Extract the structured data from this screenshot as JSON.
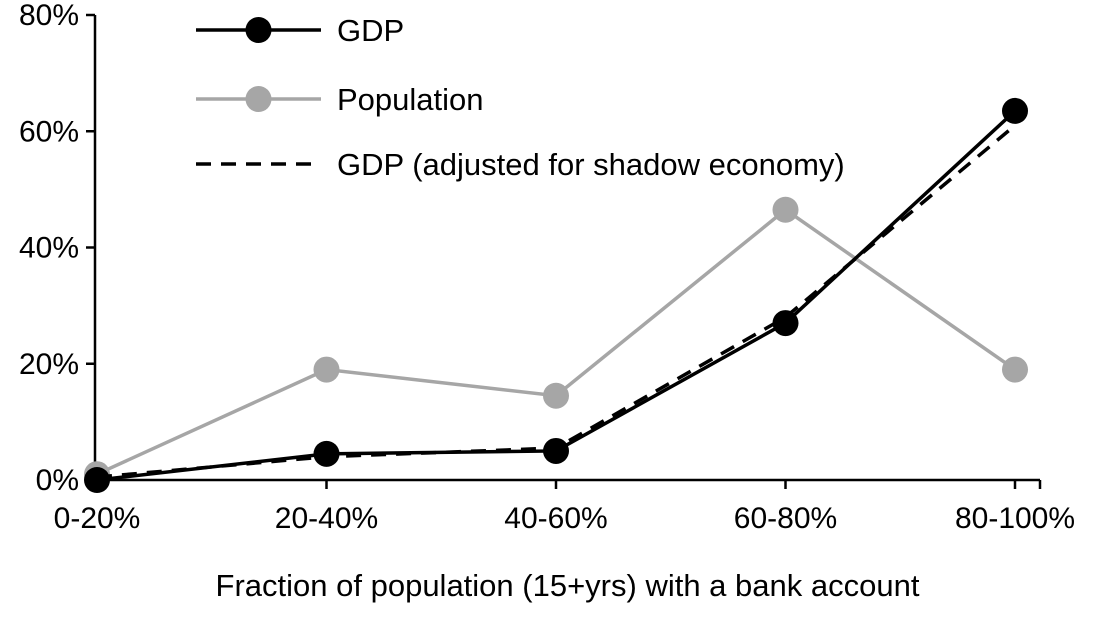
{
  "chart_data": {
    "type": "line",
    "title": "",
    "xlabel": "Fraction of population (15+yrs) with a bank account",
    "ylabel": "",
    "categories": [
      "0-20%",
      "20-40%",
      "40-60%",
      "60-80%",
      "80-100%"
    ],
    "series": [
      {
        "name": "GDP",
        "values": [
          0,
          4.5,
          5,
          27,
          63.5
        ],
        "color": "#000000",
        "dash": "solid",
        "marker": true
      },
      {
        "name": "Population",
        "values": [
          1,
          19,
          14.5,
          46.5,
          19
        ],
        "color": "#a6a6a6",
        "dash": "solid",
        "marker": true
      },
      {
        "name": "GDP (adjusted for shadow economy)",
        "values": [
          0.5,
          4,
          5.5,
          28,
          61
        ],
        "color": "#000000",
        "dash": "dashed",
        "marker": false
      }
    ],
    "ylim": [
      0,
      80
    ],
    "ytick_step": 20,
    "ytick_suffix": "%",
    "grid": false,
    "legend_position": "top-left",
    "axis_color": "#000000"
  }
}
